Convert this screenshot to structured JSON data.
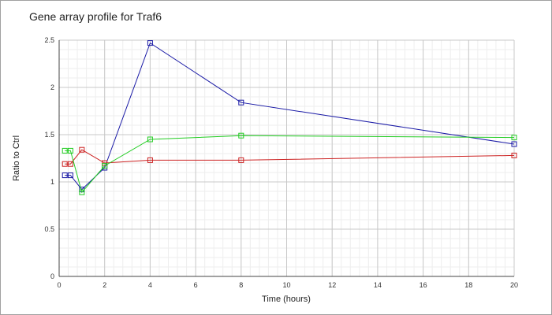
{
  "chart_data": {
    "type": "line",
    "title": "Gene array profile for Traf6",
    "xlabel": "Time (hours)",
    "ylabel": "Ratio to Ctrl",
    "xlim": [
      0,
      20
    ],
    "ylim": [
      0,
      2.5
    ],
    "x_ticks": [
      0,
      2,
      4,
      6,
      8,
      10,
      12,
      14,
      16,
      18,
      20
    ],
    "y_ticks": [
      0,
      0.5,
      1,
      1.5,
      2,
      2.5
    ],
    "x_tick_labels": [
      "0",
      "2",
      "4",
      "6",
      "8",
      "10",
      "12",
      "14",
      "16",
      "18",
      "20"
    ],
    "y_tick_labels": [
      "0",
      "0.5",
      "1",
      "1.5",
      "2",
      "2.5"
    ],
    "grid": true,
    "marker": "square",
    "series": [
      {
        "color": "#1a1aa6",
        "points": [
          [
            0.25,
            1.07
          ],
          [
            0.5,
            1.07
          ],
          [
            1,
            0.92
          ],
          [
            2,
            1.15
          ],
          [
            4,
            2.47
          ],
          [
            8,
            1.84
          ],
          [
            20,
            1.4
          ]
        ]
      },
      {
        "color": "#cc2222",
        "points": [
          [
            0.25,
            1.19
          ],
          [
            0.5,
            1.19
          ],
          [
            1,
            1.34
          ],
          [
            2,
            1.2
          ],
          [
            4,
            1.23
          ],
          [
            8,
            1.23
          ],
          [
            20,
            1.28
          ]
        ]
      },
      {
        "color": "#22cc22",
        "points": [
          [
            0.25,
            1.33
          ],
          [
            0.5,
            1.33
          ],
          [
            1,
            0.89
          ],
          [
            2,
            1.17
          ],
          [
            4,
            1.45
          ],
          [
            8,
            1.49
          ],
          [
            20,
            1.47
          ]
        ]
      }
    ]
  }
}
